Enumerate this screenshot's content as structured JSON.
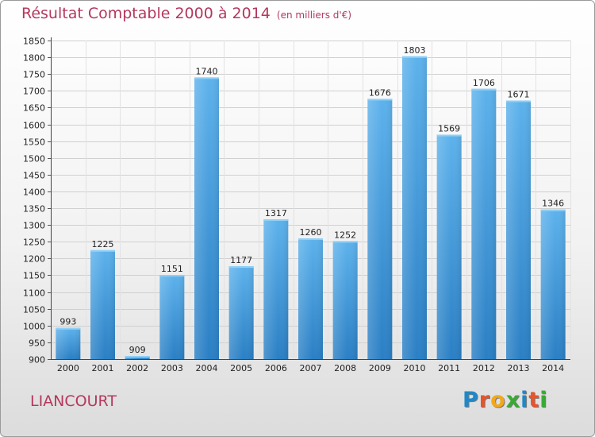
{
  "title": "Résultat Comptable 2000 à 2014",
  "unit": "(en milliers d'€)",
  "commune": "LIANCOURT",
  "logo": {
    "letters": [
      "P",
      "r",
      "o",
      "x",
      "i",
      "t",
      "i"
    ],
    "colors": [
      "#1e88c8",
      "#e8532a",
      "#f2a81c",
      "#3aaa35",
      "#1e88c8",
      "#e8532a",
      "#3aaa35"
    ]
  },
  "chart_data": {
    "type": "bar",
    "categories": [
      "2000",
      "2001",
      "2002",
      "2003",
      "2004",
      "2005",
      "2006",
      "2007",
      "2008",
      "2009",
      "2010",
      "2011",
      "2012",
      "2013",
      "2014"
    ],
    "values": [
      993,
      1225,
      909,
      1151,
      1740,
      1177,
      1317,
      1260,
      1252,
      1676,
      1803,
      1569,
      1706,
      1671,
      1346
    ],
    "ylim": [
      900,
      1850
    ],
    "yticks": [
      900,
      950,
      1000,
      1050,
      1100,
      1150,
      1200,
      1250,
      1300,
      1350,
      1400,
      1450,
      1500,
      1550,
      1600,
      1650,
      1700,
      1750,
      1800,
      1850
    ],
    "grid": true,
    "bar_color": "#3a9ee0"
  }
}
